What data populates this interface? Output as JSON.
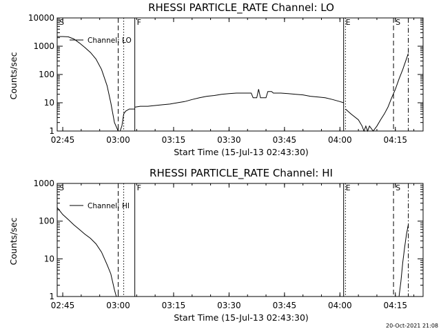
{
  "stamp": "20-Oct-2021 21:08",
  "chart_data": [
    {
      "type": "line",
      "title": "RHESSI PARTICLE_RATE Channel: LO",
      "xlabel": "Start Time (15-Jul-13 02:43:30)",
      "ylabel": "Counts/sec",
      "yscale": "log",
      "xlim": [
        "02:43:30",
        "04:22:30"
      ],
      "ylim": [
        1,
        10000
      ],
      "x_ticks": [
        "02:45",
        "03:00",
        "03:15",
        "03:30",
        "03:45",
        "04:00",
        "04:15"
      ],
      "y_ticks": [
        "1",
        "10",
        "100",
        "1000",
        "10000"
      ],
      "legend": {
        "position": "top-left",
        "entries": [
          "Channel: LO"
        ]
      },
      "grid": false,
      "markers": [
        {
          "label": "S",
          "time": "02:43:30",
          "style": "dashed"
        },
        {
          "label": "",
          "time": "03:00:00",
          "style": "dashed"
        },
        {
          "label": "",
          "time": "03:01:30",
          "style": "dotted"
        },
        {
          "label": "F",
          "time": "03:04:30",
          "style": "solid"
        },
        {
          "label": "E",
          "time": "04:01:00",
          "style": "solid"
        },
        {
          "label": "",
          "time": "04:01:30",
          "style": "dotted"
        },
        {
          "label": "S",
          "time": "04:14:30",
          "style": "dashed"
        },
        {
          "label": "",
          "time": "04:18:30",
          "style": "dashdot"
        }
      ],
      "series": [
        {
          "name": "Channel: LO",
          "segments": [
            {
              "x": [
                "02:43:30",
                "02:45:00",
                "02:46:30",
                "02:48:00",
                "02:49:30",
                "02:51:00",
                "02:52:30",
                "02:54:00",
                "02:55:30",
                "02:57:00",
                "02:58:00",
                "02:59:00",
                "03:00:00",
                "03:00:30",
                "03:01:00",
                "03:01:30",
                "03:02:00",
                "03:03:00",
                "03:04:30"
              ],
              "y": [
                2200,
                2200,
                2150,
                1800,
                1300,
                900,
                600,
                350,
                150,
                40,
                10,
                2,
                1,
                1,
                1.5,
                4,
                5,
                6,
                6
              ]
            },
            {
              "x": [
                "03:04:30",
                "03:06:00",
                "03:08:00",
                "03:10:00",
                "03:12:00",
                "03:14:00",
                "03:16:00",
                "03:18:00",
                "03:20:00",
                "03:22:00",
                "03:24:00",
                "03:26:00",
                "03:28:00",
                "03:30:00",
                "03:32:00",
                "03:34:00",
                "03:36:00",
                "03:36:30",
                "03:37:30",
                "03:38:00",
                "03:38:30",
                "03:39:00",
                "03:39:30",
                "03:40:00",
                "03:40:30",
                "03:41:00",
                "03:41:30",
                "03:42:00",
                "03:43:00",
                "03:44:00",
                "03:46:00",
                "03:48:00",
                "03:50:00",
                "03:52:00",
                "03:54:00",
                "03:56:00",
                "03:58:00",
                "04:00:00",
                "04:01:00"
              ],
              "y": [
                7,
                7.5,
                7.5,
                8,
                8.5,
                9,
                10,
                11,
                13,
                15,
                17,
                18,
                20,
                21,
                22,
                22,
                22,
                15,
                15,
                30,
                15,
                15,
                15,
                15,
                25,
                25,
                25,
                22,
                22,
                22,
                21,
                20,
                19,
                17,
                16,
                15,
                13,
                11,
                10
              ]
            },
            {
              "x": [
                "04:01:30",
                "04:03:00",
                "04:05:00",
                "04:06:00",
                "04:06:30",
                "04:07:00",
                "04:07:30",
                "04:08:00",
                "04:09:00",
                "04:10:00",
                "04:11:00",
                "04:12:00",
                "04:13:00",
                "04:14:00",
                "04:15:00",
                "04:16:00",
                "04:17:00",
                "04:18:30"
              ],
              "y": [
                6,
                4,
                2.5,
                1.5,
                1,
                1.5,
                1,
                1.5,
                1,
                1.5,
                2.5,
                4,
                7,
                15,
                30,
                70,
                150,
                550
              ]
            }
          ]
        }
      ]
    },
    {
      "type": "line",
      "title": "RHESSI PARTICLE_RATE Channel: HI",
      "xlabel": "Start Time (15-Jul-13 02:43:30)",
      "ylabel": "Counts/sec",
      "yscale": "log",
      "xlim": [
        "02:43:30",
        "04:22:30"
      ],
      "ylim": [
        1,
        1000
      ],
      "x_ticks": [
        "02:45",
        "03:00",
        "03:15",
        "03:30",
        "03:45",
        "04:00",
        "04:15"
      ],
      "y_ticks": [
        "1",
        "10",
        "100",
        "1000"
      ],
      "legend": {
        "position": "top-left",
        "entries": [
          "Channel: HI"
        ]
      },
      "grid": false,
      "markers": [
        {
          "label": "S",
          "time": "02:43:30",
          "style": "dashed"
        },
        {
          "label": "",
          "time": "03:00:00",
          "style": "dashed"
        },
        {
          "label": "",
          "time": "03:01:30",
          "style": "dotted"
        },
        {
          "label": "F",
          "time": "03:04:30",
          "style": "solid"
        },
        {
          "label": "E",
          "time": "04:01:00",
          "style": "solid"
        },
        {
          "label": "",
          "time": "04:01:30",
          "style": "dotted"
        },
        {
          "label": "S",
          "time": "04:14:30",
          "style": "dashed"
        },
        {
          "label": "",
          "time": "04:18:30",
          "style": "dashdot"
        }
      ],
      "series": [
        {
          "name": "Channel: HI",
          "segments": [
            {
              "x": [
                "02:43:30",
                "02:45:00",
                "02:46:30",
                "02:48:00",
                "02:49:30",
                "02:51:00",
                "02:52:30",
                "02:54:00",
                "02:55:30",
                "02:57:00",
                "02:58:00",
                "02:59:00",
                "02:59:30"
              ],
              "y": [
                230,
                150,
                110,
                80,
                60,
                45,
                35,
                25,
                15,
                7,
                4,
                1.5,
                1
              ]
            },
            {
              "x": [
                "04:16:00",
                "04:16:30",
                "04:17:00",
                "04:17:30",
                "04:18:00",
                "04:18:30"
              ],
              "y": [
                1,
                2.5,
                8,
                20,
                45,
                80
              ]
            }
          ]
        }
      ]
    }
  ]
}
